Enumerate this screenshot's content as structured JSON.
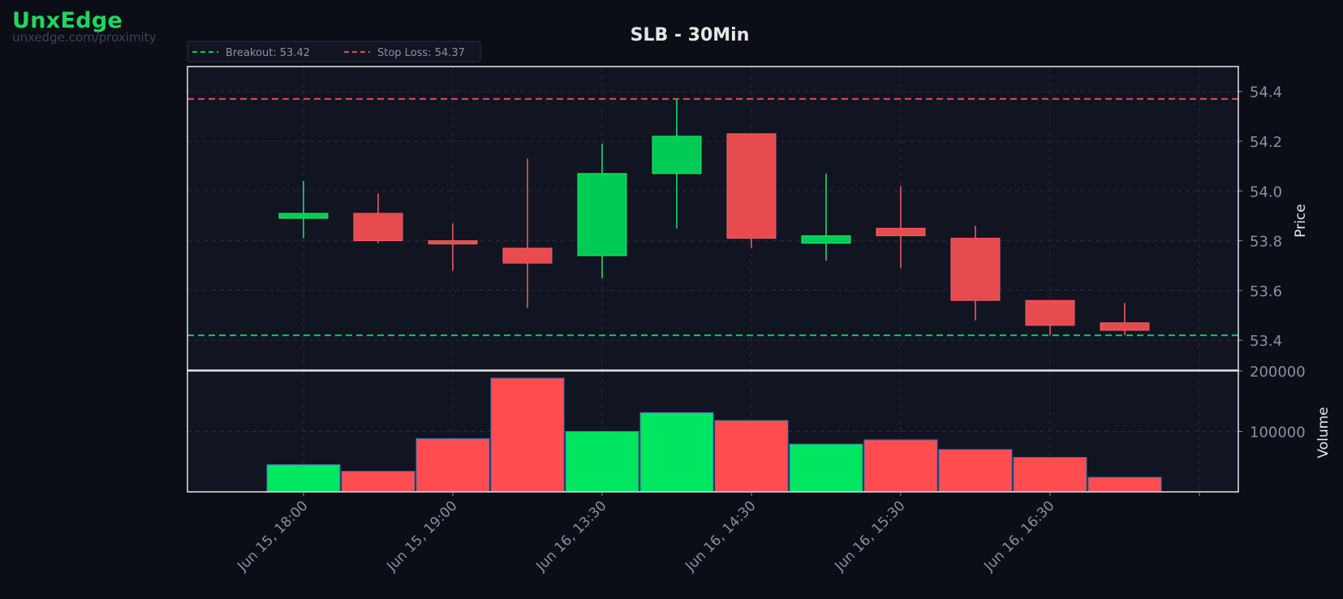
{
  "brand": {
    "name": "UnxEdge",
    "url": "unxedge.com/proximity"
  },
  "colors": {
    "background": "#0b0e17",
    "panel": "#111522",
    "up": "#00cc55",
    "down": "#e54b4f",
    "volume_up": "#00e660",
    "volume_down": "#ff4d50",
    "breakout": "#00cc55",
    "stop_loss": "#e54b4f",
    "axis_text": "#8b90a0",
    "title_text": "#e6e6e6"
  },
  "chart_data": {
    "type": "candlestick",
    "title": "SLB - 30Min",
    "legend": {
      "placement": "top-left",
      "entries": [
        {
          "label": "Breakout: 53.42",
          "color": "#00cc55"
        },
        {
          "label": "Stop Loss: 54.37",
          "color": "#e54b4f"
        }
      ]
    },
    "price_axis": {
      "label": "Price",
      "ylim": [
        53.28,
        54.5
      ],
      "ticks": [
        53.4,
        53.6,
        53.8,
        54.0,
        54.2,
        54.4
      ],
      "tick_labels": [
        "53.4",
        "53.6",
        "53.8",
        "54.0",
        "54.2",
        "54.4"
      ]
    },
    "volume_axis": {
      "label": "Volume",
      "ylim": [
        0,
        200000
      ],
      "ticks": [
        100000,
        200000
      ],
      "tick_labels": [
        "100000",
        "200000"
      ]
    },
    "x_ticks": [
      {
        "pos": 1,
        "label": "Jun 15, 18:00"
      },
      {
        "pos": 3,
        "label": "Jun 15, 19:00"
      },
      {
        "pos": 5,
        "label": "Jun 16, 13:30"
      },
      {
        "pos": 7,
        "label": "Jun 16, 14:30"
      },
      {
        "pos": 9,
        "label": "Jun 16, 15:30"
      },
      {
        "pos": 11,
        "label": "Jun 16, 16:30"
      },
      {
        "pos": 13,
        "label": ""
      }
    ],
    "grid": true,
    "breakout": 53.42,
    "stop_loss": 54.37,
    "candles": [
      {
        "open": 53.89,
        "high": 54.04,
        "low": 53.81,
        "close": 53.91,
        "volume": 45000
      },
      {
        "open": 53.91,
        "high": 53.99,
        "low": 53.79,
        "close": 53.8,
        "volume": 34000
      },
      {
        "open": 53.8,
        "high": 53.87,
        "low": 53.68,
        "close": 53.79,
        "volume": 88000
      },
      {
        "open": 53.77,
        "high": 54.13,
        "low": 53.53,
        "close": 53.71,
        "volume": 188000
      },
      {
        "open": 53.74,
        "high": 54.19,
        "low": 53.65,
        "close": 54.07,
        "volume": 100000
      },
      {
        "open": 54.07,
        "high": 54.37,
        "low": 53.85,
        "close": 54.22,
        "volume": 131000
      },
      {
        "open": 54.23,
        "high": 54.23,
        "low": 53.77,
        "close": 53.81,
        "volume": 118000
      },
      {
        "open": 53.79,
        "high": 54.07,
        "low": 53.72,
        "close": 53.82,
        "volume": 79000
      },
      {
        "open": 53.85,
        "high": 54.02,
        "low": 53.69,
        "close": 53.82,
        "volume": 86000
      },
      {
        "open": 53.81,
        "high": 53.86,
        "low": 53.48,
        "close": 53.56,
        "volume": 70000
      },
      {
        "open": 53.56,
        "high": 53.56,
        "low": 53.42,
        "close": 53.46,
        "volume": 57000
      },
      {
        "open": 53.47,
        "high": 53.55,
        "low": 53.42,
        "close": 53.44,
        "volume": 24000
      }
    ]
  }
}
